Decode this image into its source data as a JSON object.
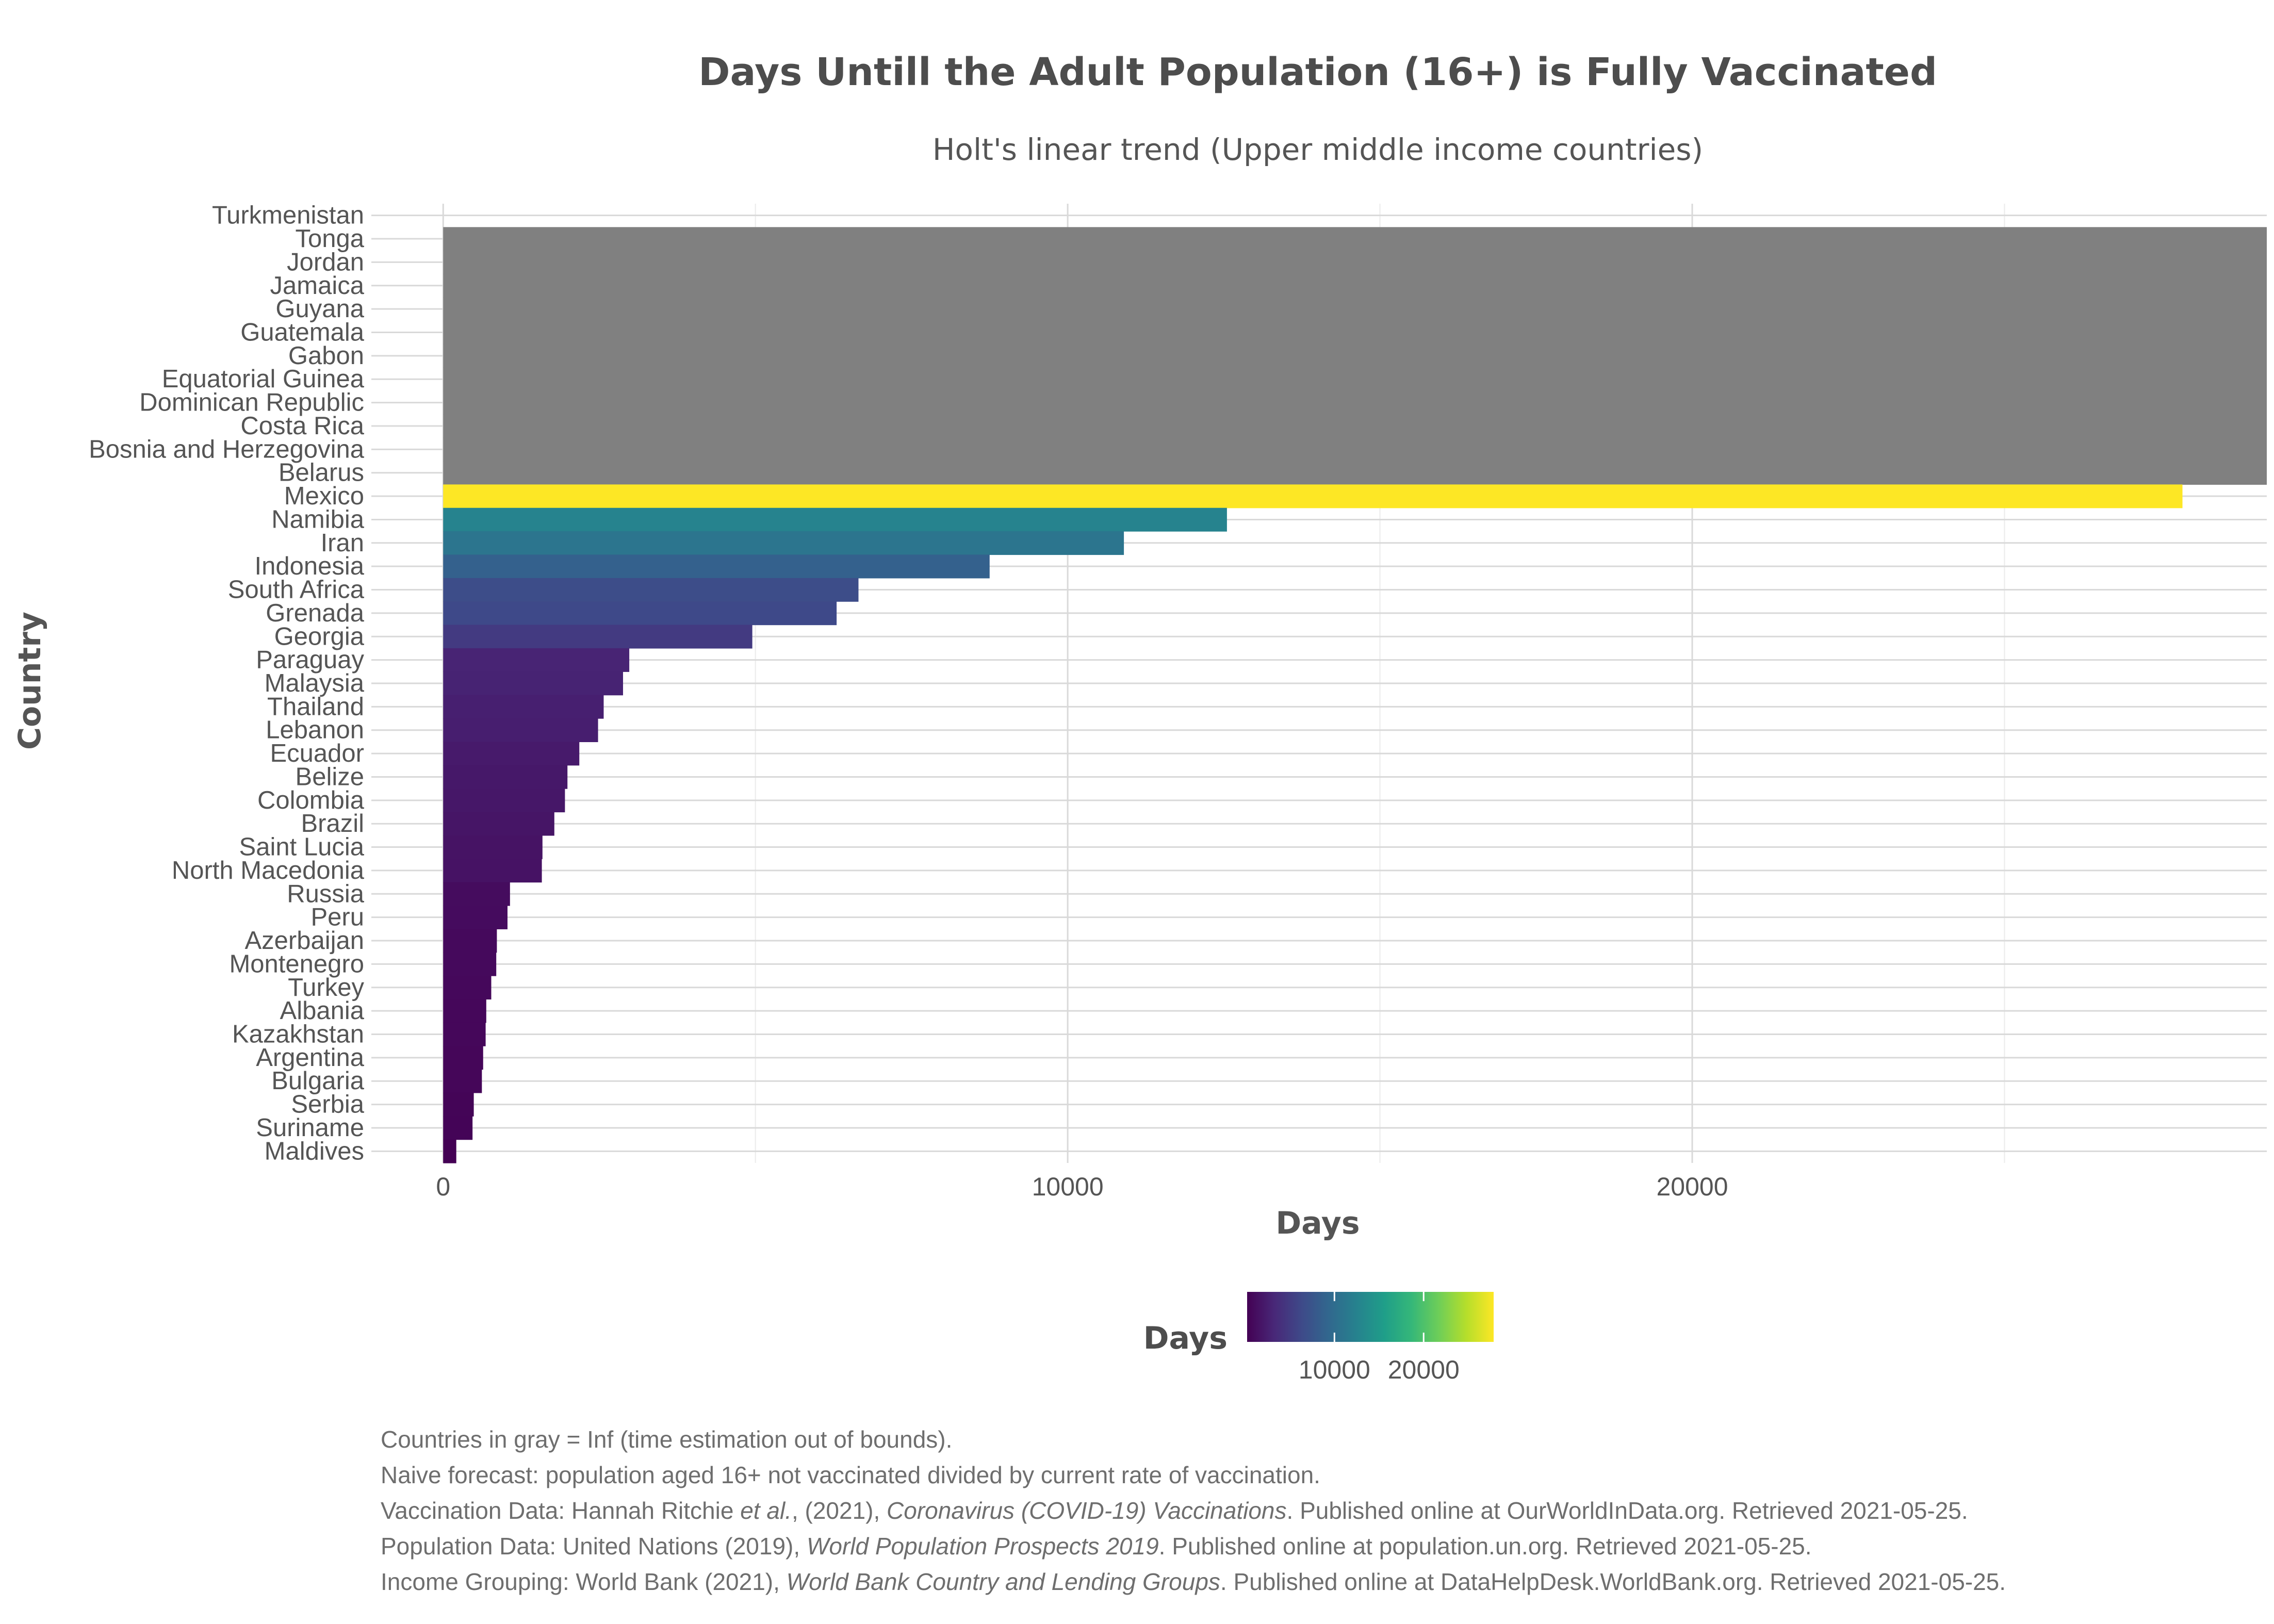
{
  "chart_data": {
    "type": "bar",
    "orientation": "horizontal",
    "title": "Days Untill the Adult Population (16+) is Fully Vaccinated",
    "subtitle": "Holt's linear trend (Upper middle income countries)",
    "xlabel": "Days",
    "ylabel": "Country",
    "xlim": [
      -1150,
      29200
    ],
    "x_ticks": [
      0,
      10000,
      20000
    ],
    "x_minor_ticks": [
      5000,
      15000,
      25000
    ],
    "grid": true,
    "na_color": "#808080",
    "categories": [
      "Turkmenistan",
      "Tonga",
      "Jordan",
      "Jamaica",
      "Guyana",
      "Guatemala",
      "Gabon",
      "Equatorial Guinea",
      "Dominican Republic",
      "Costa Rica",
      "Bosnia and Herzegovina",
      "Belarus",
      "Mexico",
      "Namibia",
      "Iran",
      "Indonesia",
      "South Africa",
      "Grenada",
      "Georgia",
      "Paraguay",
      "Malaysia",
      "Thailand",
      "Lebanon",
      "Ecuador",
      "Belize",
      "Colombia",
      "Brazil",
      "Saint Lucia",
      "North Macedonia",
      "Russia",
      "Peru",
      "Azerbaijan",
      "Montenegro",
      "Turkey",
      "Albania",
      "Kazakhstan",
      "Argentina",
      "Bulgaria",
      "Serbia",
      "Suriname",
      "Maldives"
    ],
    "values": [
      null,
      "Inf",
      "Inf",
      "Inf",
      "Inf",
      "Inf",
      "Inf",
      "Inf",
      "Inf",
      "Inf",
      "Inf",
      "Inf",
      27850,
      12550,
      10900,
      8750,
      6650,
      6300,
      4950,
      2980,
      2880,
      2570,
      2480,
      2180,
      1990,
      1950,
      1780,
      1590,
      1580,
      1070,
      1030,
      860,
      850,
      770,
      690,
      680,
      640,
      620,
      490,
      470,
      210
    ],
    "legend": {
      "title": "Days",
      "position": "bottom",
      "ticks": [
        10000,
        20000
      ],
      "min": 210,
      "max": 27850,
      "colors": [
        "#440154",
        "#482878",
        "#3e4a89",
        "#31688e",
        "#26828e",
        "#1f9e89",
        "#35b779",
        "#6ece58",
        "#b5de2b",
        "#fde725"
      ]
    },
    "caption": [
      [
        {
          "t": "Countries in gray = Inf (time estimation out of bounds).",
          "i": false
        }
      ],
      [
        {
          "t": "Naive forecast: population aged 16+ not vaccinated divided by current rate of vaccination.",
          "i": false
        }
      ],
      [
        {
          "t": "Vaccination Data: Hannah Ritchie ",
          "i": false
        },
        {
          "t": "et al.",
          "i": true
        },
        {
          "t": ", (2021), ",
          "i": false
        },
        {
          "t": "Coronavirus (COVID-19) Vaccinations",
          "i": true
        },
        {
          "t": ". Published online at OurWorldInData.org. Retrieved 2021-05-25.",
          "i": false
        }
      ],
      [
        {
          "t": "Population Data: United Nations (2019), ",
          "i": false
        },
        {
          "t": "World Population Prospects 2019",
          "i": true
        },
        {
          "t": ". Published online at population.un.org. Retrieved 2021-05-25.",
          "i": false
        }
      ],
      [
        {
          "t": "Income Grouping: World Bank (2021), ",
          "i": false
        },
        {
          "t": "World Bank Country and Lending Groups",
          "i": true
        },
        {
          "t": ". Published online at DataHelpDesk.WorldBank.org. Retrieved 2021-05-25.",
          "i": false
        }
      ]
    ]
  }
}
